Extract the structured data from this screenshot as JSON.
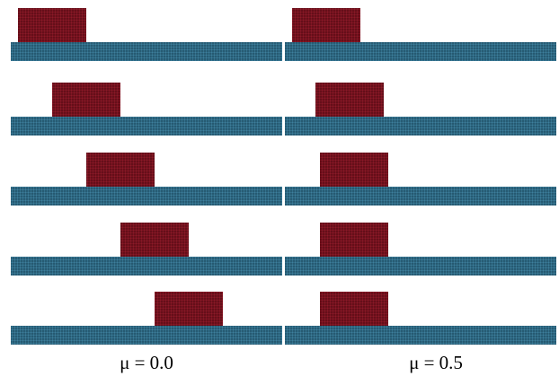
{
  "columns": [
    {
      "label": "μ = 0.0"
    },
    {
      "label": "μ = 0.5"
    }
  ]
}
